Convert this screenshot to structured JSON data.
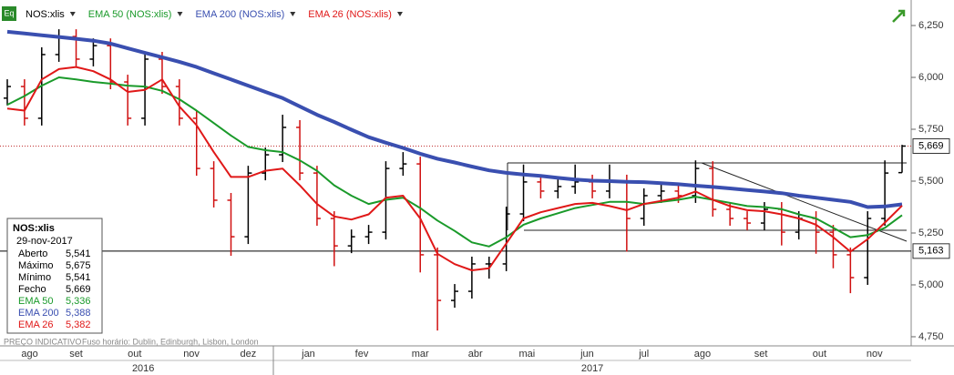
{
  "chart_data": {
    "type": "ohlc",
    "symbol_icon": "Eq",
    "ylim": [
      4.706,
      6.373
    ],
    "yticks": [
      {
        "value": 6.25,
        "label": "6,250"
      },
      {
        "value": 6.0,
        "label": "6,000"
      },
      {
        "value": 5.75,
        "label": "5,750"
      },
      {
        "value": 5.5,
        "label": "5,500"
      },
      {
        "value": 5.25,
        "label": "5,250"
      },
      {
        "value": 5.0,
        "label": "5,000"
      },
      {
        "value": 4.75,
        "label": "4,750"
      }
    ],
    "xlim": [
      0,
      52
    ],
    "xticks": [
      {
        "value": 1.3,
        "label": "ago"
      },
      {
        "value": 4.0,
        "label": "set"
      },
      {
        "value": 7.4,
        "label": "out"
      },
      {
        "value": 10.7,
        "label": "nov"
      },
      {
        "value": 14.0,
        "label": "dez"
      },
      {
        "value": 17.5,
        "label": "jan"
      },
      {
        "value": 20.6,
        "label": "fev"
      },
      {
        "value": 24.0,
        "label": "mar"
      },
      {
        "value": 27.2,
        "label": "abr"
      },
      {
        "value": 30.2,
        "label": "mai"
      },
      {
        "value": 33.7,
        "label": "jun"
      },
      {
        "value": 37.0,
        "label": "jul"
      },
      {
        "value": 40.4,
        "label": "ago"
      },
      {
        "value": 43.8,
        "label": "set"
      },
      {
        "value": 47.2,
        "label": "out"
      },
      {
        "value": 50.4,
        "label": "nov"
      }
    ],
    "year_ticks": [
      {
        "value": 7.9,
        "label": "2016"
      },
      {
        "value": 34,
        "label": "2017"
      }
    ],
    "series": [
      {
        "name": "NOS:xlis",
        "up_color": "#000000",
        "down_color": "#d01010",
        "open": [
          5.9,
          5.956,
          5.803,
          6.11,
          6.197,
          6.088,
          6.153,
          5.978,
          5.803,
          6.088,
          5.956,
          5.803,
          5.561,
          5.408,
          5.232,
          5.539,
          5.627,
          5.759,
          5.539,
          5.32,
          5.188,
          5.232,
          5.254,
          5.561,
          5.583,
          5.145,
          4.925,
          4.969,
          5.101,
          5.101,
          5.342,
          5.496,
          5.452,
          5.474,
          5.496,
          5.452,
          5.496,
          5.32,
          5.43,
          5.452,
          5.43,
          5.561,
          5.364,
          5.32,
          5.298,
          5.364,
          5.254,
          5.32,
          5.254,
          5.145,
          5.035,
          5.32,
          5.541
        ],
        "high": [
          5.991,
          5.991,
          6.145,
          6.232,
          6.232,
          6.188,
          6.188,
          6.013,
          6.123,
          6.123,
          5.991,
          5.838,
          5.596,
          5.443,
          5.574,
          5.662,
          5.82,
          5.794,
          5.574,
          5.355,
          5.267,
          5.289,
          5.596,
          5.64,
          5.618,
          5.18,
          5.004,
          5.136,
          5.136,
          5.377,
          5.58,
          5.531,
          5.509,
          5.58,
          5.531,
          5.58,
          5.531,
          5.465,
          5.487,
          5.487,
          5.6,
          5.596,
          5.399,
          5.355,
          5.399,
          5.399,
          5.355,
          5.355,
          5.289,
          5.18,
          5.355,
          5.6,
          5.675
        ],
        "low": [
          5.865,
          5.768,
          5.768,
          6.075,
          6.053,
          6.053,
          5.943,
          5.768,
          5.768,
          5.921,
          5.768,
          5.526,
          5.373,
          5.14,
          5.197,
          5.504,
          5.592,
          5.504,
          5.285,
          5.09,
          5.153,
          5.197,
          5.219,
          5.526,
          5.06,
          4.78,
          4.89,
          4.934,
          5.03,
          5.066,
          5.307,
          5.417,
          5.417,
          5.439,
          5.417,
          5.417,
          5.16,
          5.285,
          5.395,
          5.395,
          5.395,
          5.329,
          5.285,
          5.263,
          5.263,
          5.19,
          5.219,
          5.15,
          5.08,
          4.96,
          5.0,
          5.285,
          5.541
        ],
        "close": [
          5.956,
          5.803,
          6.11,
          6.197,
          6.088,
          6.153,
          5.978,
          5.803,
          6.088,
          5.956,
          5.803,
          5.561,
          5.408,
          5.232,
          5.539,
          5.627,
          5.759,
          5.539,
          5.32,
          5.188,
          5.232,
          5.254,
          5.561,
          5.583,
          5.145,
          4.925,
          4.969,
          5.101,
          5.101,
          5.342,
          5.496,
          5.452,
          5.474,
          5.496,
          5.452,
          5.496,
          5.32,
          5.43,
          5.452,
          5.43,
          5.561,
          5.364,
          5.32,
          5.298,
          5.364,
          5.254,
          5.32,
          5.254,
          5.145,
          5.035,
          5.32,
          5.539,
          5.669
        ]
      },
      {
        "name": "EMA 50 (NOS:xlis)",
        "color": "#1a9a2a",
        "width": 2,
        "values": [
          5.868,
          5.91,
          5.96,
          6.0,
          5.99,
          5.978,
          5.97,
          5.96,
          5.956,
          5.935,
          5.895,
          5.84,
          5.78,
          5.72,
          5.665,
          5.649,
          5.64,
          5.6,
          5.55,
          5.48,
          5.43,
          5.39,
          5.41,
          5.42,
          5.37,
          5.31,
          5.26,
          5.205,
          5.185,
          5.23,
          5.29,
          5.32,
          5.345,
          5.37,
          5.385,
          5.4,
          5.4,
          5.39,
          5.4,
          5.41,
          5.425,
          5.41,
          5.395,
          5.38,
          5.375,
          5.365,
          5.34,
          5.32,
          5.275,
          5.23,
          5.24,
          5.275,
          5.336
        ]
      },
      {
        "name": "EMA 200 (NOS:xlis)",
        "color": "#3a4fb0",
        "width": 4,
        "values": [
          6.22,
          6.212,
          6.203,
          6.195,
          6.186,
          6.177,
          6.163,
          6.14,
          6.118,
          6.097,
          6.075,
          6.05,
          6.02,
          5.99,
          5.96,
          5.93,
          5.9,
          5.86,
          5.82,
          5.785,
          5.748,
          5.712,
          5.685,
          5.66,
          5.632,
          5.608,
          5.59,
          5.57,
          5.552,
          5.54,
          5.532,
          5.525,
          5.516,
          5.508,
          5.502,
          5.5,
          5.497,
          5.495,
          5.49,
          5.485,
          5.478,
          5.472,
          5.465,
          5.457,
          5.45,
          5.442,
          5.43,
          5.42,
          5.41,
          5.4,
          5.375,
          5.378,
          5.388
        ]
      },
      {
        "name": "EMA 26 (NOS:xlis)",
        "color": "#e01818",
        "width": 2,
        "values": [
          5.85,
          5.84,
          5.99,
          6.04,
          6.05,
          6.03,
          5.99,
          5.93,
          5.94,
          5.99,
          5.86,
          5.77,
          5.64,
          5.52,
          5.52,
          5.55,
          5.56,
          5.48,
          5.39,
          5.33,
          5.315,
          5.34,
          5.42,
          5.43,
          5.32,
          5.15,
          5.1,
          5.07,
          5.08,
          5.2,
          5.32,
          5.35,
          5.37,
          5.39,
          5.395,
          5.38,
          5.36,
          5.39,
          5.405,
          5.42,
          5.45,
          5.41,
          5.38,
          5.36,
          5.355,
          5.34,
          5.32,
          5.29,
          5.23,
          5.16,
          5.22,
          5.3,
          5.382
        ]
      }
    ],
    "markers": [
      {
        "value": 5.669,
        "label": "5,669",
        "color": "#c03030",
        "style": "dotted"
      },
      {
        "value": 5.163,
        "label": "5,163",
        "color": "#000000",
        "style": "solid"
      }
    ],
    "info_box": {
      "title": "NOS:xlis",
      "date": "29-nov-2017",
      "rows": [
        [
          "Aberto",
          "5,541"
        ],
        [
          "Máximo",
          "5,675"
        ],
        [
          "Mínimo",
          "5,541"
        ],
        [
          "Fecho",
          "5,669"
        ],
        [
          "EMA 50",
          "5,336"
        ],
        [
          "EMA 200",
          "5,388"
        ],
        [
          "EMA 26",
          "5,382"
        ]
      ],
      "row_colors": [
        "#000000",
        "#000000",
        "#000000",
        "#000000",
        "#1a9a2a",
        "#3a4fb0",
        "#e01818"
      ]
    },
    "footer": [
      "PREÇO INDICATIVO",
      "Fuso horário: Dublin, Edinburgh, Lisbon, London"
    ]
  }
}
